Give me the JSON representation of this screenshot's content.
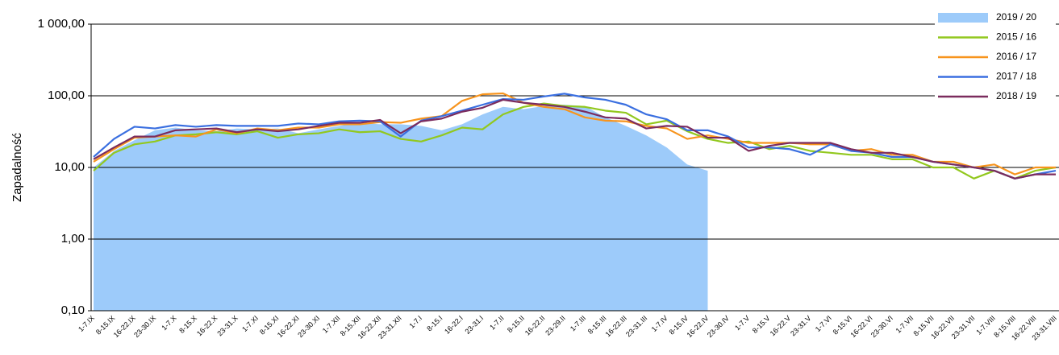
{
  "chart_data": {
    "type": "line",
    "y_label": "Zapadalność",
    "log_y": true,
    "grid": true,
    "legend": "top-right",
    "categories": [
      "1-7.IX",
      "8-15.IX",
      "16-22.IX",
      "23-30.IX",
      "1-7.X",
      "8-15.X",
      "16-22.X",
      "23-31.X",
      "1-7.XI",
      "8-15.XI",
      "16-22.XI",
      "23-30.XI",
      "1-7.XII",
      "8-15.XII",
      "16-22.XII",
      "23-31.XII",
      "1-7.I",
      "8-15.I",
      "16-22.I",
      "23-31.I",
      "1-7.II",
      "8-15.II",
      "16-22.II",
      "23-29.II",
      "1-7.III",
      "8-15.III",
      "16-22.III",
      "23-31.III",
      "1-7.IV",
      "8-15.IV",
      "16-22.IV",
      "23-30.IV",
      "1-7.V",
      "8-15.V",
      "16-22.V",
      "23-31.V",
      "1-7.VI",
      "8-15.VI",
      "16-22.VI",
      "23-30.VI",
      "1-7.VII",
      "8-15.VII",
      "16-22.VII",
      "23-31.VII",
      "1-7.VIII",
      "8-15.VIII",
      "16-22.VIII",
      "23-31.VIII"
    ],
    "ylim": [
      0.1,
      1000
    ],
    "yticks": [
      {
        "value": 0.1,
        "label": "0,10"
      },
      {
        "value": 1,
        "label": "1,00"
      },
      {
        "value": 10,
        "label": "10,00"
      },
      {
        "value": 100,
        "label": "100,00"
      },
      {
        "value": 1000,
        "label": "1 000,00"
      }
    ],
    "series": [
      {
        "name": "2019 / 20",
        "type": "area",
        "color": "#9dcbfa",
        "values": [
          10,
          17,
          24,
          33,
          36,
          33,
          32,
          35,
          34,
          35,
          30,
          34,
          38,
          42,
          40,
          40,
          38,
          33,
          40,
          55,
          70,
          65,
          72,
          75,
          72,
          50,
          38,
          28,
          19,
          11,
          9,
          null,
          null,
          null,
          null,
          null,
          null,
          null,
          null,
          null,
          null,
          null,
          null,
          null,
          null,
          null,
          null,
          null
        ]
      },
      {
        "name": "2015 / 16",
        "type": "line",
        "color": "#92c81e",
        "values": [
          9,
          16,
          21,
          23,
          28,
          29,
          31,
          29,
          32,
          26,
          29,
          30,
          34,
          31,
          32,
          25,
          23,
          28,
          36,
          34,
          55,
          70,
          78,
          72,
          70,
          62,
          58,
          40,
          45,
          32,
          25,
          22,
          23,
          18,
          20,
          17,
          16,
          15,
          15,
          13,
          13,
          10,
          10,
          7,
          9,
          7,
          9,
          10
        ]
      },
      {
        "name": "2016 / 17",
        "type": "line",
        "color": "#f7941d",
        "values": [
          12,
          18,
          26,
          27,
          28,
          27,
          34,
          30,
          35,
          33,
          36,
          36,
          40,
          40,
          43,
          42,
          48,
          52,
          85,
          105,
          108,
          80,
          70,
          65,
          50,
          45,
          44,
          38,
          35,
          25,
          28,
          25,
          22,
          22,
          22,
          21,
          21,
          17,
          18,
          15,
          15,
          12,
          12,
          10,
          11,
          8,
          10,
          10
        ]
      },
      {
        "name": "2017 / 18",
        "type": "line",
        "color": "#3a6fe0",
        "values": [
          14,
          25,
          37,
          35,
          39,
          37,
          39,
          38,
          38,
          38,
          41,
          40,
          44,
          45,
          44,
          27,
          45,
          52,
          62,
          75,
          90,
          88,
          98,
          107,
          95,
          88,
          75,
          55,
          47,
          33,
          33,
          27,
          19,
          19,
          18,
          15,
          21,
          17,
          16,
          14,
          14,
          12,
          11,
          10,
          9,
          7,
          8,
          9
        ]
      },
      {
        "name": "2018 / 19",
        "type": "line",
        "color": "#7b2c5e",
        "values": [
          13,
          19,
          27,
          27,
          33,
          34,
          35,
          31,
          34,
          32,
          34,
          38,
          42,
          42,
          46,
          30,
          44,
          48,
          60,
          68,
          88,
          80,
          75,
          70,
          60,
          50,
          48,
          35,
          38,
          37,
          26,
          26,
          17,
          20,
          22,
          22,
          22,
          18,
          16,
          16,
          14,
          12,
          11,
          10,
          9,
          7,
          8,
          8
        ]
      }
    ]
  }
}
